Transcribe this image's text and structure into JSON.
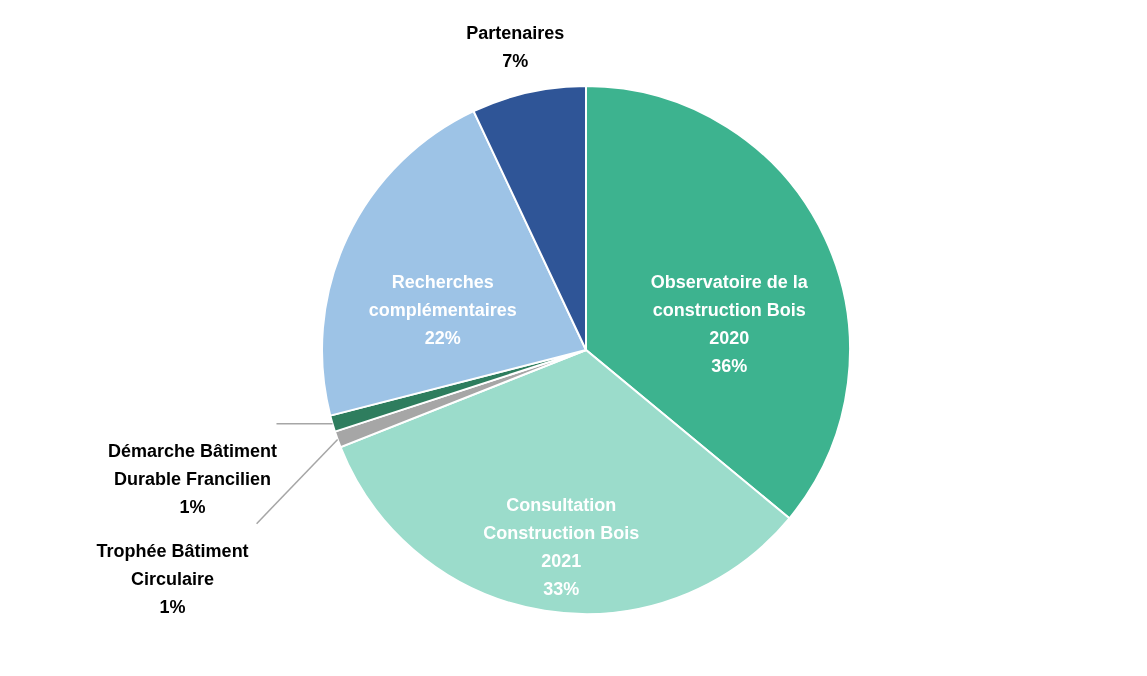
{
  "chart_data": {
    "type": "pie",
    "categories": [
      "Observatoire de la\nconstruction Bois\n2020",
      "Consultation\nConstruction Bois\n2021",
      "Trophée Bâtiment\nCirculaire",
      "Démarche Bâtiment\nDurable Francilien",
      "Recherches\ncomplémentaires",
      "Partenaires"
    ],
    "values": [
      36,
      33,
      1,
      1,
      22,
      7
    ],
    "value_labels": [
      "36%",
      "33%",
      "1%",
      "1%",
      "22%",
      "7%"
    ],
    "colors": [
      "#3db38f",
      "#9bdccb",
      "#a6a6a6",
      "#2e7d5e",
      "#9dc3e6",
      "#2f5597"
    ]
  }
}
